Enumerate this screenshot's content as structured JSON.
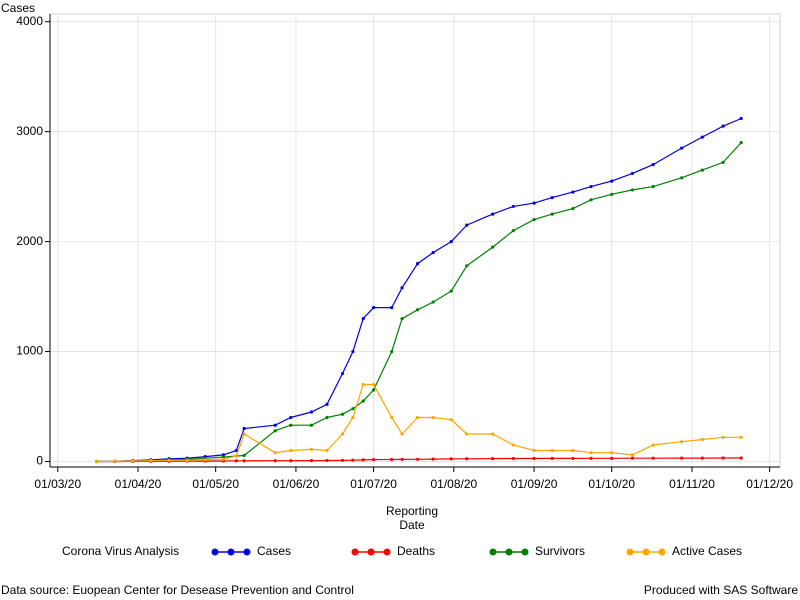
{
  "chart_data": {
    "type": "line",
    "ylabel": "Cases",
    "xlabel_lines": [
      "Reporting",
      "Date"
    ],
    "legend_title": "Corona Virus Analysis",
    "footnote_left": "Data source: Euopean Center for Desease Prevention and Control",
    "footnote_right": "Produced with SAS Software",
    "grid": true,
    "legend": "bottom",
    "xlim": [
      "2020-02-27",
      "2020-12-05"
    ],
    "xticks": [
      {
        "value": "2020-03-01",
        "label": "01/03/20"
      },
      {
        "value": "2020-04-01",
        "label": "01/04/20"
      },
      {
        "value": "2020-05-01",
        "label": "01/05/20"
      },
      {
        "value": "2020-06-01",
        "label": "01/06/20"
      },
      {
        "value": "2020-07-01",
        "label": "01/07/20"
      },
      {
        "value": "2020-08-01",
        "label": "01/08/20"
      },
      {
        "value": "2020-09-01",
        "label": "01/09/20"
      },
      {
        "value": "2020-10-01",
        "label": "01/10/20"
      },
      {
        "value": "2020-11-01",
        "label": "01/11/20"
      },
      {
        "value": "2020-12-01",
        "label": "01/12/20"
      }
    ],
    "ylim": [
      -50,
      4070
    ],
    "yticks": [
      0,
      1000,
      2000,
      3000,
      4000
    ],
    "x": [
      "2020-03-16",
      "2020-03-23",
      "2020-03-30",
      "2020-04-06",
      "2020-04-13",
      "2020-04-20",
      "2020-04-27",
      "2020-05-04",
      "2020-05-09",
      "2020-05-12",
      "2020-05-24",
      "2020-05-30",
      "2020-06-07",
      "2020-06-13",
      "2020-06-19",
      "2020-06-23",
      "2020-06-27",
      "2020-07-01",
      "2020-07-08",
      "2020-07-12",
      "2020-07-18",
      "2020-07-24",
      "2020-07-31",
      "2020-08-06",
      "2020-08-16",
      "2020-08-24",
      "2020-09-01",
      "2020-09-08",
      "2020-09-16",
      "2020-09-23",
      "2020-10-01",
      "2020-10-09",
      "2020-10-17",
      "2020-10-28",
      "2020-11-05",
      "2020-11-13",
      "2020-11-20"
    ],
    "series": [
      {
        "name": "Cases",
        "color": "#0000e0",
        "values": [
          0,
          2,
          8,
          15,
          25,
          30,
          45,
          60,
          100,
          300,
          330,
          400,
          450,
          520,
          800,
          1000,
          1300,
          1400,
          1400,
          1580,
          1800,
          1900,
          2000,
          2150,
          2250,
          2320,
          2350,
          2400,
          2450,
          2500,
          2550,
          2620,
          2700,
          2850,
          2950,
          3050,
          3120
        ]
      },
      {
        "name": "Deaths",
        "color": "#ff0000",
        "values": [
          0,
          0,
          0,
          1,
          2,
          3,
          4,
          5,
          6,
          6,
          7,
          7,
          8,
          9,
          10,
          12,
          15,
          17,
          18,
          19,
          20,
          22,
          24,
          25,
          26,
          27,
          27,
          28,
          28,
          29,
          29,
          30,
          30,
          31,
          31,
          32,
          32
        ]
      },
      {
        "name": "Survivors",
        "color": "#008000",
        "values": [
          0,
          0,
          2,
          8,
          15,
          20,
          30,
          40,
          50,
          55,
          280,
          330,
          330,
          400,
          430,
          480,
          550,
          650,
          1000,
          1300,
          1380,
          1450,
          1550,
          1780,
          1950,
          2100,
          2200,
          2250,
          2300,
          2380,
          2430,
          2470,
          2500,
          2580,
          2650,
          2720,
          2900
        ]
      },
      {
        "name": "Active Cases",
        "color": "#ffa500",
        "values": [
          0,
          2,
          5,
          8,
          10,
          10,
          15,
          20,
          50,
          250,
          80,
          100,
          110,
          100,
          250,
          400,
          700,
          700,
          400,
          250,
          400,
          400,
          380,
          250,
          250,
          150,
          100,
          100,
          100,
          80,
          80,
          60,
          150,
          180,
          200,
          220,
          220
        ]
      }
    ]
  }
}
